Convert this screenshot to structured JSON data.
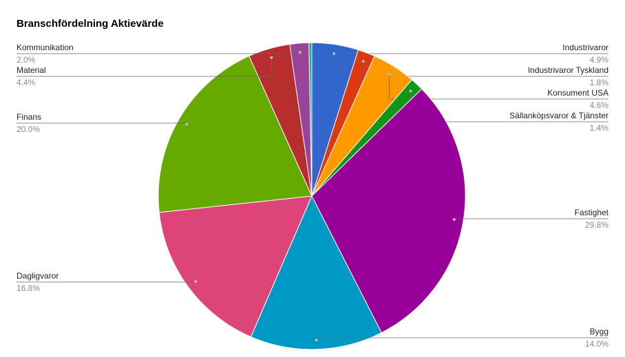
{
  "chart_data": {
    "type": "pie",
    "title": "Branschfördelning Aktievärde",
    "categories": [
      "Industrivaror",
      "Industrivaror Tyskland",
      "Konsument USA",
      "Sällanköpsvaror & Tjänster",
      "Fastighet",
      "Bygg",
      "Dagligvaror",
      "Finans",
      "Material",
      "Kommunikation",
      null
    ],
    "values": [
      4.9,
      1.8,
      4.6,
      1.4,
      29.8,
      14.0,
      16.8,
      20.0,
      4.4,
      2.0,
      0.3
    ],
    "value_labels": [
      "4.9%",
      "1.8%",
      "4.6%",
      "1.4%",
      "29.8%",
      "14.0%",
      "16.8%",
      "20.0%",
      "4.4%",
      "2.0%",
      null
    ],
    "colors": [
      "#3366cc",
      "#dc3912",
      "#ff9900",
      "#109618",
      "#990099",
      "#0099c6",
      "#dd4477",
      "#66aa00",
      "#b82e2e",
      "#994499",
      "#22aa99"
    ]
  }
}
